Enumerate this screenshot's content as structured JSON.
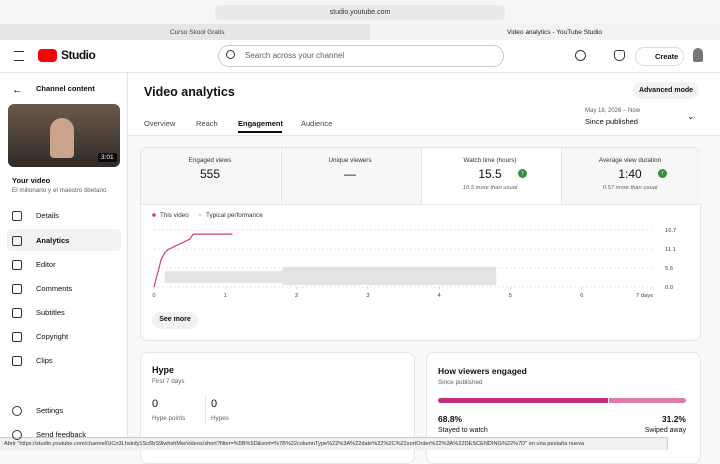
{
  "browser": {
    "url": "studio.youtube.com",
    "tabs": [
      "Curso Skool Gratis",
      "Video analytics - YouTube Studio"
    ],
    "status": "Abrir \"https://studio.youtube.com/channel/UCn3Lhskdy1Sc6bS9iwhshMw/videos/short?filter=%5B%5D&sort=%7B%22columnType%22%3A%22date%22%2C%22sortOrder%22%3A%22DESCENDING%22%7D\" en una pestaña nueva"
  },
  "header": {
    "logo": "Studio",
    "search": "Search across your channel",
    "create": "Create"
  },
  "sidebar": {
    "back": "Channel content",
    "duration": "3:01",
    "video_heading": "Your video",
    "video_title": "El millonario y el maestro tibetano",
    "nav": [
      "Details",
      "Analytics",
      "Editor",
      "Comments",
      "Subtitles",
      "Copyright",
      "Clips"
    ],
    "bottom": [
      "Settings",
      "Send feedback"
    ]
  },
  "main": {
    "title": "Video analytics",
    "advanced": "Advanced mode",
    "tabs": [
      "Overview",
      "Reach",
      "Engagement",
      "Audience"
    ],
    "date_range": "May 18, 2026 – Now",
    "period": "Since published",
    "metrics": [
      {
        "label": "Engaged views",
        "value": 555
      },
      {
        "label": "Unique viewers",
        "value": "—"
      },
      {
        "label": "Watch time (hours)",
        "value": 15.5,
        "note": "10.5 more than usual"
      },
      {
        "label": "Average view duration",
        "value": "1:40",
        "note": "0.57 more than usual"
      }
    ],
    "see_more": "See more"
  },
  "chart_data": {
    "type": "line",
    "xlim": [
      0,
      7
    ],
    "ylim": [
      0,
      16.7
    ],
    "xticks": [
      0,
      1,
      2,
      3,
      4,
      5,
      6,
      {
        "value": 7,
        "label": "7 days"
      }
    ],
    "yticks": [
      {
        "value": 0,
        "label": "0.0"
      },
      5.6,
      11.1,
      16.7
    ],
    "series": [
      {
        "name": "This video",
        "color": "#cc3f79",
        "x": [
          0,
          0.05,
          0.1,
          0.15,
          0.2,
          0.3,
          0.4,
          0.5,
          0.55,
          1.1
        ],
        "values": [
          0,
          4,
          8,
          10,
          11,
          12,
          13,
          14,
          15.5,
          15.5
        ]
      },
      {
        "name": "Typical performance",
        "color": "#e3e3e3",
        "x": [
          0.15,
          1.8,
          1.8,
          4.8
        ],
        "values": [
          4.6,
          4.6,
          5.9,
          5.9
        ],
        "lower": [
          1.2,
          1.2,
          0.6,
          0.6
        ]
      }
    ]
  },
  "hype": {
    "title": "Hype",
    "subtitle": "First 7 days",
    "stats": [
      {
        "value": 0,
        "label": "Hype points"
      },
      {
        "value": 0,
        "label": "Hypes"
      }
    ]
  },
  "engaged": {
    "title": "How viewers engaged",
    "subtitle": "Since published",
    "segments": [
      {
        "label": "Stayed to watch",
        "value": 68.8,
        "value_label": "68.8%",
        "color": "#c2307a"
      },
      {
        "label": "Swiped away",
        "value": 31.2,
        "value_label": "31.2%",
        "color": "#e07aa8"
      }
    ]
  }
}
